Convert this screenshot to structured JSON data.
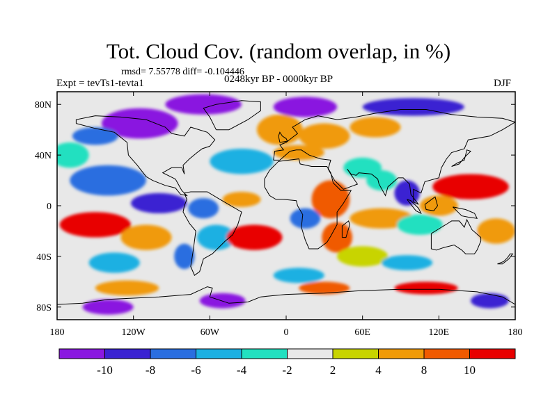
{
  "chart_data": {
    "type": "heatmap",
    "title": "Tot. Cloud Cov. (random overlap, in %)",
    "stats_line": "rmsd= 7.55778  diff= -0.104446",
    "period": "0248kyr BP - 0000kyr BP",
    "experiment": "Expt = tevTs1-tevta1",
    "season": "DJF",
    "projection": "cylindrical equidistant",
    "xlim": [
      -180,
      180
    ],
    "ylim": [
      -90,
      90
    ],
    "x_ticks": [
      {
        "value": -180,
        "label": "180"
      },
      {
        "value": -120,
        "label": "120W"
      },
      {
        "value": -60,
        "label": "60W"
      },
      {
        "value": 0,
        "label": "0"
      },
      {
        "value": 60,
        "label": "60E"
      },
      {
        "value": 120,
        "label": "120E"
      },
      {
        "value": 180,
        "label": "180"
      }
    ],
    "y_ticks": [
      {
        "value": 80,
        "label": "80N"
      },
      {
        "value": 40,
        "label": "40N"
      },
      {
        "value": 0,
        "label": "0"
      },
      {
        "value": -40,
        "label": "40S"
      },
      {
        "value": -80,
        "label": "80S"
      }
    ],
    "colorbar": {
      "bins": [
        "< -10",
        "-10 to -8",
        "-8 to -6",
        "-6 to -4",
        "-4 to -2",
        "-2 to 2",
        "2 to 4",
        "4 to 8",
        "8 to 10",
        "> 10"
      ],
      "colors": [
        "#8a18e0",
        "#3a22d2",
        "#2a6ee0",
        "#1cb0e2",
        "#22e0c0",
        "#e8e8e8",
        "#c8d400",
        "#f09a08",
        "#f05a00",
        "#e80000"
      ],
      "labels": [
        "-10",
        "-8",
        "-6",
        "-4",
        "-2",
        "2",
        "4",
        "8",
        "10"
      ]
    },
    "anomaly_regions": [
      {
        "lon": -115,
        "lat": 65,
        "value": -12,
        "rx": 30,
        "ry": 12
      },
      {
        "lon": -65,
        "lat": 80,
        "value": -11,
        "rx": 30,
        "ry": 8
      },
      {
        "lon": 15,
        "lat": 78,
        "value": -11,
        "rx": 25,
        "ry": 8
      },
      {
        "lon": 100,
        "lat": 78,
        "value": -9,
        "rx": 40,
        "ry": 7
      },
      {
        "lon": -150,
        "lat": 55,
        "value": -7,
        "rx": 18,
        "ry": 7
      },
      {
        "lon": -5,
        "lat": 60,
        "value": 6,
        "rx": 18,
        "ry": 12
      },
      {
        "lon": 30,
        "lat": 55,
        "value": 7,
        "rx": 20,
        "ry": 10
      },
      {
        "lon": 70,
        "lat": 62,
        "value": 5,
        "rx": 20,
        "ry": 8
      },
      {
        "lon": -140,
        "lat": 20,
        "value": -8,
        "rx": 30,
        "ry": 12
      },
      {
        "lon": -170,
        "lat": 40,
        "value": -3,
        "rx": 15,
        "ry": 10
      },
      {
        "lon": -35,
        "lat": 35,
        "value": -5,
        "rx": 25,
        "ry": 10
      },
      {
        "lon": 10,
        "lat": 42,
        "value": 5,
        "rx": 20,
        "ry": 6
      },
      {
        "lon": 60,
        "lat": 30,
        "value": -3,
        "rx": 15,
        "ry": 8
      },
      {
        "lon": 75,
        "lat": 20,
        "value": -4,
        "rx": 12,
        "ry": 8
      },
      {
        "lon": 95,
        "lat": 10,
        "value": -9,
        "rx": 10,
        "ry": 10
      },
      {
        "lon": 145,
        "lat": 15,
        "value": 12,
        "rx": 30,
        "ry": 10
      },
      {
        "lon": 120,
        "lat": 0,
        "value": 6,
        "rx": 15,
        "ry": 8
      },
      {
        "lon": -100,
        "lat": 2,
        "value": -9,
        "rx": 22,
        "ry": 8
      },
      {
        "lon": -65,
        "lat": -2,
        "value": -7,
        "rx": 12,
        "ry": 8
      },
      {
        "lon": -35,
        "lat": 5,
        "value": 6,
        "rx": 15,
        "ry": 6
      },
      {
        "lon": 35,
        "lat": 5,
        "value": 8,
        "rx": 15,
        "ry": 15
      },
      {
        "lon": 15,
        "lat": -10,
        "value": -8,
        "rx": 12,
        "ry": 8
      },
      {
        "lon": 75,
        "lat": -10,
        "value": 6,
        "rx": 25,
        "ry": 8
      },
      {
        "lon": 105,
        "lat": -15,
        "value": -4,
        "rx": 18,
        "ry": 8
      },
      {
        "lon": -150,
        "lat": -15,
        "value": 12,
        "rx": 28,
        "ry": 10
      },
      {
        "lon": -110,
        "lat": -25,
        "value": 7,
        "rx": 20,
        "ry": 10
      },
      {
        "lon": -55,
        "lat": -25,
        "value": -6,
        "rx": 15,
        "ry": 10
      },
      {
        "lon": -25,
        "lat": -25,
        "value": 12,
        "rx": 22,
        "ry": 10
      },
      {
        "lon": 40,
        "lat": -25,
        "value": 8,
        "rx": 12,
        "ry": 12
      },
      {
        "lon": 60,
        "lat": -40,
        "value": 3,
        "rx": 20,
        "ry": 8
      },
      {
        "lon": 135,
        "lat": -25,
        "value": -2,
        "rx": 15,
        "ry": 10
      },
      {
        "lon": 165,
        "lat": -20,
        "value": 7,
        "rx": 15,
        "ry": 10
      },
      {
        "lon": -135,
        "lat": -45,
        "value": -5,
        "rx": 20,
        "ry": 8
      },
      {
        "lon": -80,
        "lat": -40,
        "value": -8,
        "rx": 8,
        "ry": 10
      },
      {
        "lon": 10,
        "lat": -55,
        "value": -6,
        "rx": 20,
        "ry": 6
      },
      {
        "lon": 95,
        "lat": -45,
        "value": -5,
        "rx": 20,
        "ry": 6
      },
      {
        "lon": -125,
        "lat": -65,
        "value": 5,
        "rx": 25,
        "ry": 6
      },
      {
        "lon": -50,
        "lat": -75,
        "value": -11,
        "rx": 18,
        "ry": 6
      },
      {
        "lon": 30,
        "lat": -65,
        "value": 8,
        "rx": 20,
        "ry": 5
      },
      {
        "lon": 110,
        "lat": -65,
        "value": 12,
        "rx": 25,
        "ry": 5
      },
      {
        "lon": -140,
        "lat": -80,
        "value": -11,
        "rx": 20,
        "ry": 6
      },
      {
        "lon": 160,
        "lat": -75,
        "value": -9,
        "rx": 15,
        "ry": 6
      }
    ]
  }
}
